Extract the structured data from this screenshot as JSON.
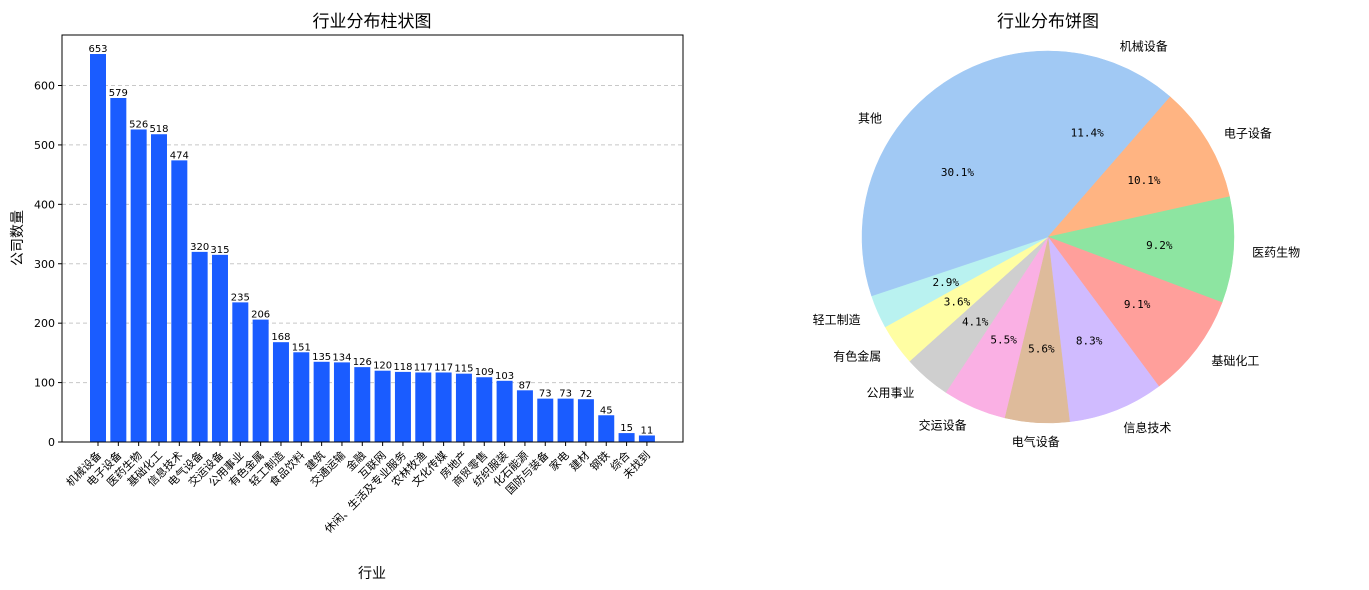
{
  "chart_data": [
    {
      "type": "bar",
      "title": "行业分布柱状图",
      "xlabel": "行业",
      "ylabel": "公司数量",
      "ylim": [
        0,
        685
      ],
      "yticks": [
        0,
        100,
        200,
        300,
        400,
        500,
        600
      ],
      "grid": "y-dashed",
      "bar_color": "#1a5cff",
      "categories": [
        "机械设备",
        "电子设备",
        "医药生物",
        "基础化工",
        "信息技术",
        "电气设备",
        "交运设备",
        "公用事业",
        "有色金属",
        "轻工制造",
        "食品饮料",
        "建筑",
        "交通运输",
        "金融",
        "互联网",
        "休闲、生活及专业服务",
        "农林牧渔",
        "文化传媒",
        "房地产",
        "商贸零售",
        "纺织服装",
        "化石能源",
        "国防与装备",
        "家电",
        "建材",
        "钢铁",
        "综合",
        "未找到"
      ],
      "values": [
        653,
        579,
        526,
        518,
        474,
        320,
        315,
        235,
        206,
        168,
        151,
        135,
        134,
        126,
        120,
        118,
        117,
        117,
        115,
        109,
        103,
        87,
        73,
        73,
        72,
        45,
        15,
        11
      ]
    },
    {
      "type": "pie",
      "title": "行业分布饼图",
      "start_angle": "90 (top), clockwise",
      "slices": [
        {
          "label": "机械设备",
          "pct": 11.4,
          "pct_text": "11.4%",
          "color": "#a1c9f4"
        },
        {
          "label": "电子设备",
          "pct": 10.1,
          "pct_text": "10.1%",
          "color": "#ffb482"
        },
        {
          "label": "医药生物",
          "pct": 9.2,
          "pct_text": "9.2%",
          "color": "#8de5a1"
        },
        {
          "label": "基础化工",
          "pct": 9.1,
          "pct_text": "9.1%",
          "color": "#ff9f9b"
        },
        {
          "label": "信息技术",
          "pct": 8.3,
          "pct_text": "8.3%",
          "color": "#d0bbff"
        },
        {
          "label": "电气设备",
          "pct": 5.6,
          "pct_text": "5.6%",
          "color": "#debb9b"
        },
        {
          "label": "交运设备",
          "pct": 5.5,
          "pct_text": "5.5%",
          "color": "#fab0e4"
        },
        {
          "label": "公用事业",
          "pct": 4.1,
          "pct_text": "4.1%",
          "color": "#cfcfcf"
        },
        {
          "label": "有色金属",
          "pct": 3.6,
          "pct_text": "3.6%",
          "color": "#fffea3"
        },
        {
          "label": "轻工制造",
          "pct": 2.9,
          "pct_text": "2.9%",
          "color": "#b9f2f0"
        },
        {
          "label": "其他",
          "pct": 30.1,
          "pct_text": "30.1%",
          "color": "#a1c9f4"
        }
      ]
    }
  ]
}
